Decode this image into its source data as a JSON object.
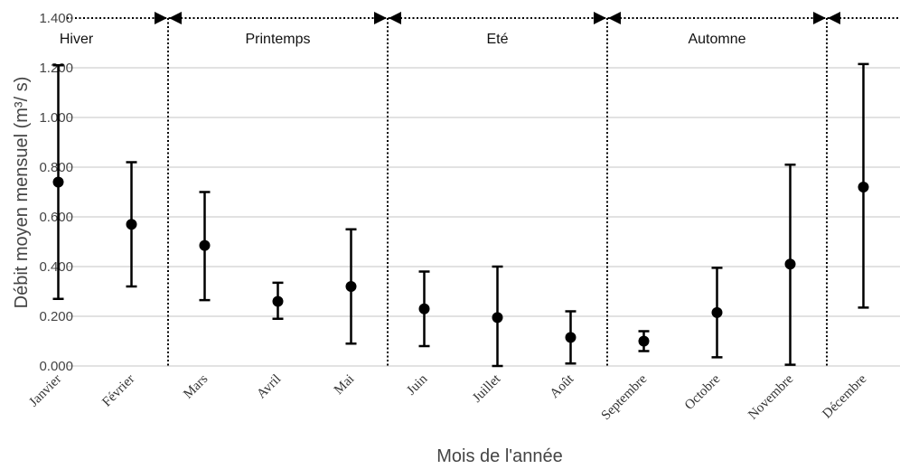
{
  "chart_data": {
    "type": "scatter",
    "xlabel": "Mois de l'année",
    "ylabel": "Débit  moyen mensuel (m³/ s)",
    "ylim": [
      0,
      1.4
    ],
    "yticks": [
      "0.000",
      "0.200",
      "0.400",
      "0.600",
      "0.800",
      "1.000",
      "1.200",
      "1.400"
    ],
    "grid": true,
    "categories": [
      "Janvier",
      "Février",
      "Mars",
      "Avril",
      "Mai",
      "Juin",
      "Juillet",
      "Août",
      "Septembre",
      "Octobre",
      "Novembre",
      "Décembre"
    ],
    "values": [
      0.74,
      0.57,
      0.485,
      0.26,
      0.32,
      0.23,
      0.195,
      0.115,
      0.1,
      0.215,
      0.41,
      0.72
    ],
    "error_low": [
      0.27,
      0.32,
      0.265,
      0.19,
      0.09,
      0.08,
      0.0,
      0.01,
      0.06,
      0.035,
      0.005,
      0.235
    ],
    "error_high": [
      1.21,
      0.82,
      0.7,
      0.335,
      0.55,
      0.38,
      0.4,
      0.22,
      0.14,
      0.395,
      0.81,
      1.215
    ],
    "seasons": [
      {
        "name": "Hiver",
        "start": 0,
        "end": 2
      },
      {
        "name": "Printemps",
        "start": 2,
        "end": 5
      },
      {
        "name": "Eté",
        "start": 5,
        "end": 8
      },
      {
        "name": "Automne",
        "start": 8,
        "end": 11
      }
    ]
  }
}
